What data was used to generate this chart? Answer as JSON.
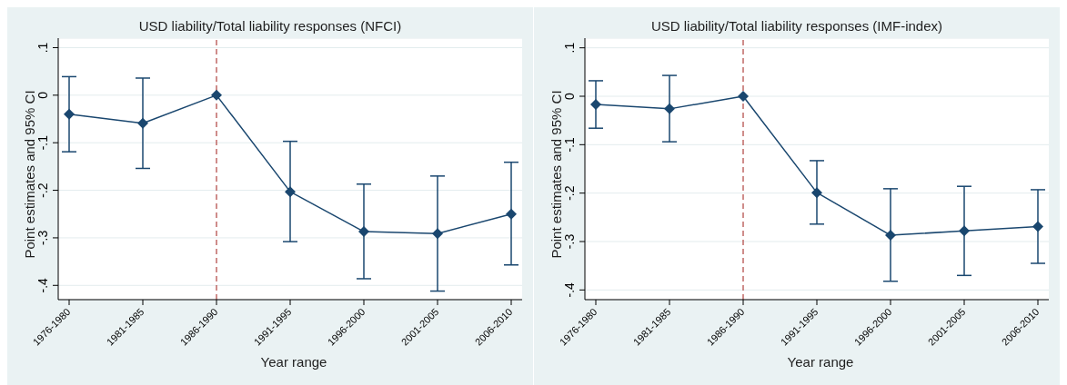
{
  "chart_data": [
    {
      "type": "line",
      "title": "USD liability/Total liability responses (NFCI)",
      "xlabel": "Year range",
      "ylabel": "Point estimates and 95% CI",
      "categories": [
        "1976-1980",
        "1981-1985",
        "1986-1990",
        "1991-1995",
        "1996-2000",
        "2001-2005",
        "2006-2010"
      ],
      "series": [
        {
          "color": "#1a476f",
          "values": [
            -0.04,
            -0.059,
            0,
            -0.203,
            -0.287,
            -0.291,
            -0.25
          ],
          "errors": [
            [
              -0.119,
              0.039
            ],
            [
              -0.154,
              0.036
            ],
            null,
            [
              -0.308,
              -0.097
            ],
            [
              -0.386,
              -0.187
            ],
            [
              -0.412,
              -0.17
            ],
            [
              -0.357,
              -0.141
            ]
          ]
        }
      ],
      "ylim": [
        -0.43,
        0.12
      ],
      "yticks": [
        {
          "value": -0.4,
          "label": "-.4"
        },
        {
          "value": -0.3,
          "label": "-.3"
        },
        {
          "value": -0.2,
          "label": "-.2"
        },
        {
          "value": -0.1,
          "label": "-.1"
        },
        0,
        {
          "value": 0.1,
          "label": ".1"
        }
      ],
      "grid": "y",
      "marker": "diamond",
      "line_style": "solid",
      "ref_lines": [
        {
          "axis": "x",
          "value": "1986-1990",
          "color": "#b0413e",
          "line_style": "dashed"
        }
      ]
    },
    {
      "type": "line",
      "title": "USD liability/Total liability responses (IMF-index)",
      "xlabel": "Year range",
      "ylabel": "Point estimates and 95% CI",
      "categories": [
        "1976-1980",
        "1981-1985",
        "1986-1990",
        "1991-1995",
        "1996-2000",
        "2001-2005",
        "2006-2010"
      ],
      "series": [
        {
          "color": "#1a476f",
          "values": [
            -0.017,
            -0.026,
            0,
            -0.199,
            -0.287,
            -0.278,
            -0.269
          ],
          "errors": [
            [
              -0.066,
              0.032
            ],
            [
              -0.094,
              0.043
            ],
            null,
            [
              -0.264,
              -0.133
            ],
            [
              -0.382,
              -0.191
            ],
            [
              -0.37,
              -0.186
            ],
            [
              -0.345,
              -0.193
            ]
          ]
        }
      ],
      "ylim": [
        -0.42,
        0.12
      ],
      "yticks": [
        {
          "value": -0.4,
          "label": "-.4"
        },
        {
          "value": -0.3,
          "label": "-.3"
        },
        {
          "value": -0.2,
          "label": "-.2"
        },
        {
          "value": -0.1,
          "label": "-.1"
        },
        0,
        {
          "value": 0.1,
          "label": ".1"
        }
      ],
      "grid": "y",
      "marker": "diamond",
      "line_style": "solid",
      "ref_lines": [
        {
          "axis": "x",
          "value": "1986-1990",
          "color": "#b0413e",
          "line_style": "dashed"
        }
      ]
    }
  ]
}
